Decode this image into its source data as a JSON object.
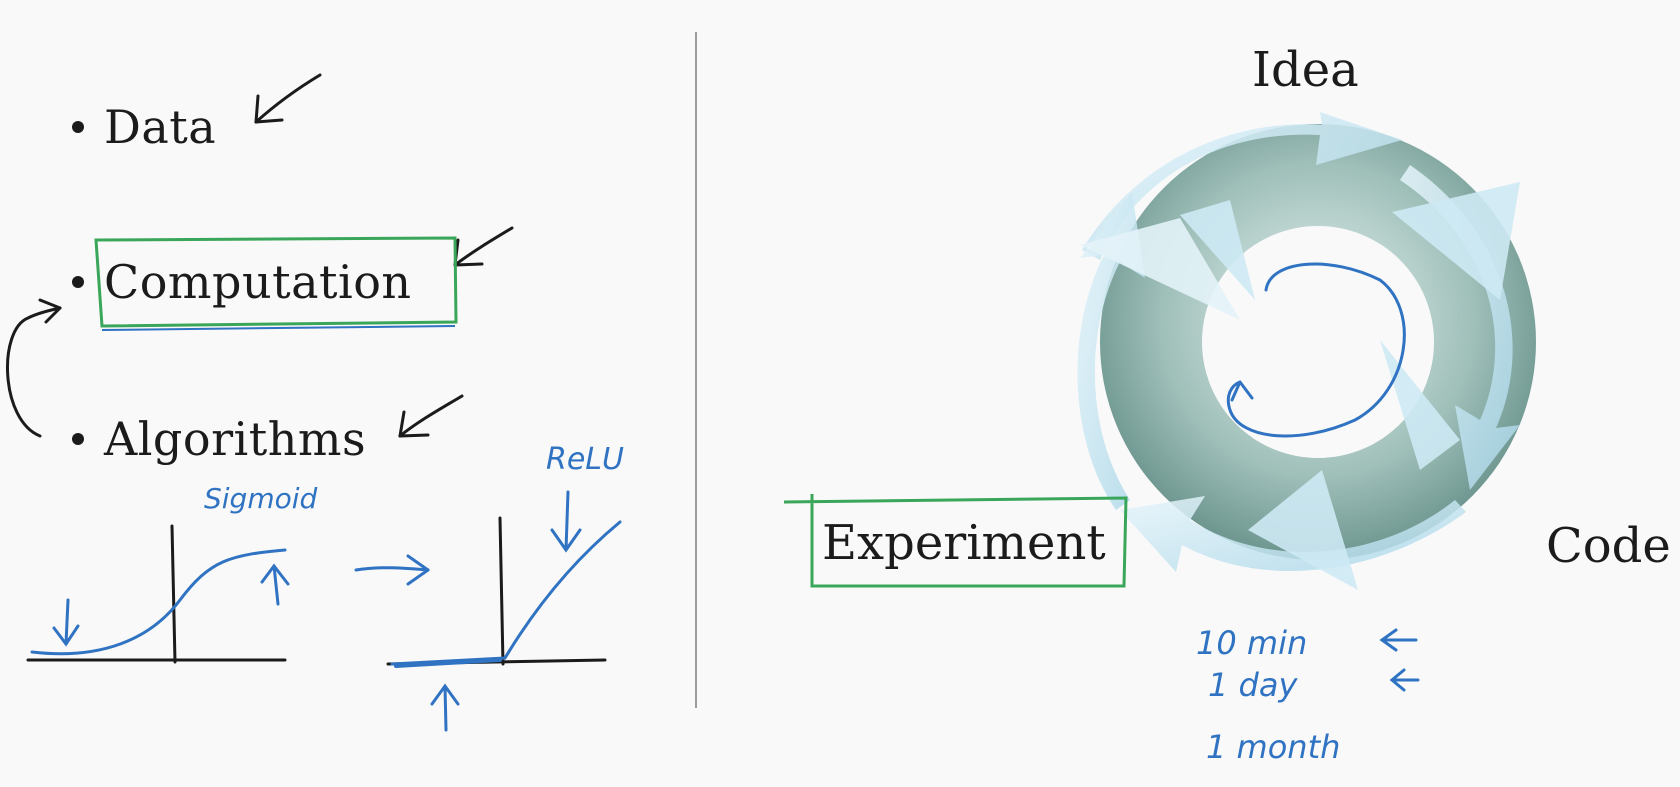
{
  "bullets": [
    {
      "label": "Data"
    },
    {
      "label": "Computation"
    },
    {
      "label": "Algorithms"
    }
  ],
  "cycle": {
    "top_label": "Idea",
    "right_label": "Code",
    "left_label": "Experiment"
  },
  "annotations": {
    "sigmoid": "Sigmoid",
    "relu": "ReLU",
    "times": [
      "10 min",
      "1 day",
      "1 month"
    ]
  },
  "colors": {
    "ink": "#1b1b1b",
    "pen_blue": "#2f73c2",
    "pen_green": "#3aa65a",
    "ring_dark": "#6f988f",
    "ring_light": "#d4e8ef",
    "arrow_light": "#c6e6f3"
  }
}
